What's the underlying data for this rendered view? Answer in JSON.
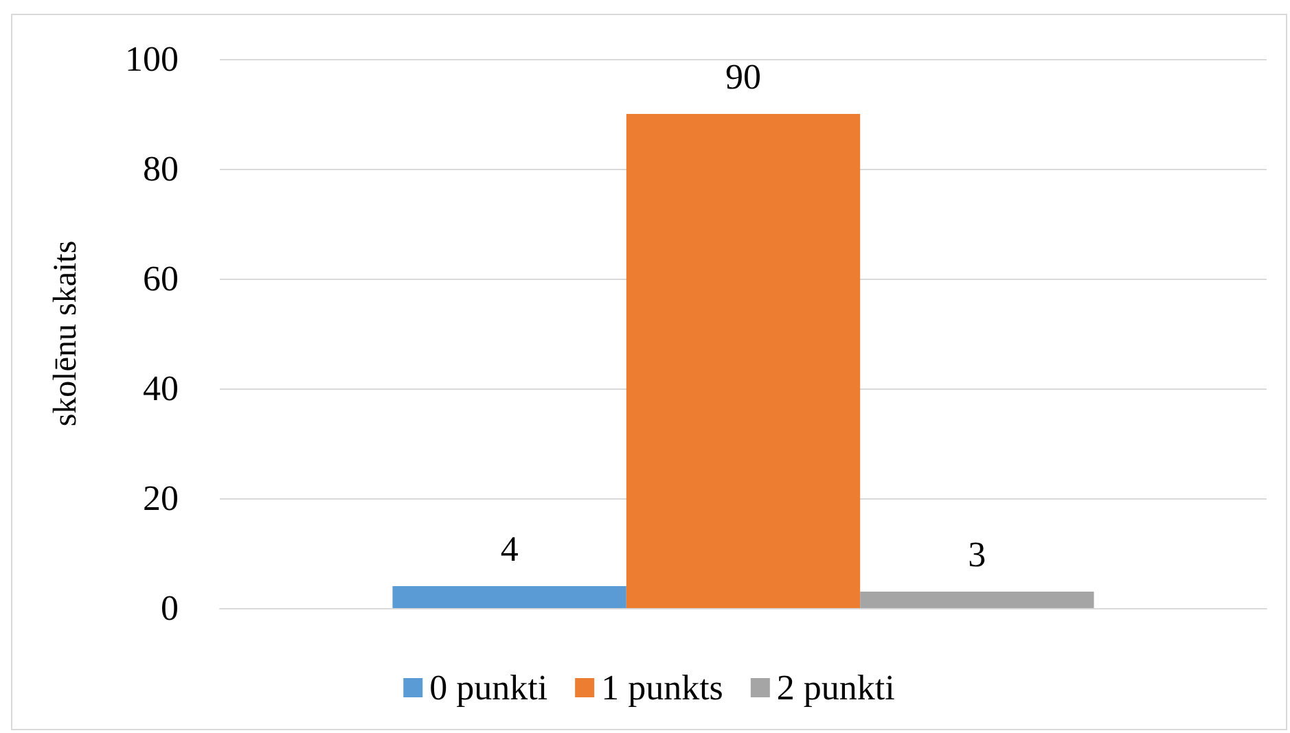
{
  "chart_data": {
    "type": "bar",
    "ylabel": "skolēnu skaits",
    "categories": [
      null
    ],
    "series": [
      {
        "name": "0 punkti",
        "color": "#5b9bd5",
        "values": [
          4
        ]
      },
      {
        "name": "1 punkts",
        "color": "#ed7d31",
        "values": [
          90
        ]
      },
      {
        "name": "2 punkti",
        "color": "#a5a5a5",
        "values": [
          3
        ]
      }
    ],
    "ylim": [
      0,
      100
    ],
    "yticks": [
      0,
      20,
      40,
      60,
      80,
      100
    ],
    "grid": "y",
    "legend": "bottom",
    "data_labels": true
  }
}
